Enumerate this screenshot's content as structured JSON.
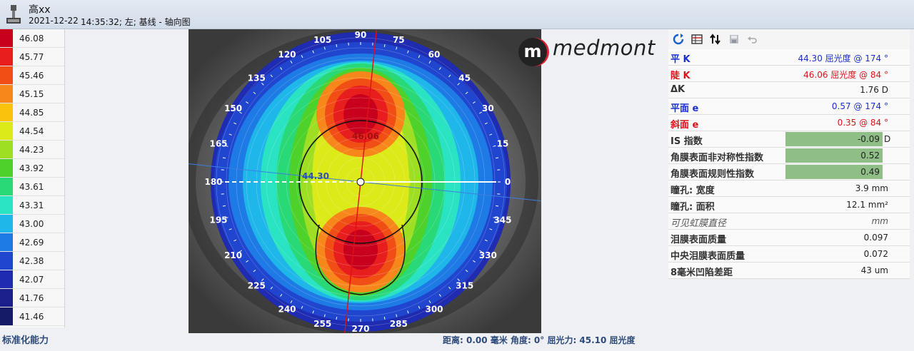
{
  "header": {
    "patient_name": "高xx",
    "exam_date": "2021-12-22",
    "exam_info": "14:35:32; 左; 基线 - 轴向图"
  },
  "scale": {
    "values": [
      "46.08",
      "45.77",
      "45.46",
      "45.15",
      "44.85",
      "44.54",
      "44.23",
      "43.92",
      "43.61",
      "43.31",
      "43.00",
      "42.69",
      "42.38",
      "42.07",
      "41.76",
      "41.46"
    ],
    "colors": [
      "#c8001e",
      "#e81e1e",
      "#f04e14",
      "#f7861b",
      "#fbc20d",
      "#dcea1a",
      "#9ede23",
      "#4ed12a",
      "#29d877",
      "#29e3c2",
      "#1fb6ea",
      "#1e7ae4",
      "#2046d0",
      "#1f2bb0",
      "#1a1f8c",
      "#141a66"
    ],
    "footer": "标准化能力"
  },
  "map": {
    "axis_labels": [
      "90",
      "75",
      "60",
      "45",
      "30",
      "15",
      "0",
      "345",
      "330",
      "315",
      "300",
      "285",
      "270",
      "255",
      "240",
      "225",
      "210",
      "195",
      "180",
      "165",
      "150",
      "135",
      "120",
      "105"
    ],
    "sim_k_flat": "44.30",
    "sim_k_steep": "46.06",
    "brand": "medmont",
    "brand_mark": "m"
  },
  "status": {
    "text": "距离: 0.00 毫米  角度: 0°  屈光力: 45.10 屈光度"
  },
  "panel": {
    "toolbar": [
      "refresh-icon",
      "grid-settings-icon",
      "sort-icon",
      "save-icon",
      "undo-icon"
    ],
    "rows": [
      {
        "label": "平 K",
        "value": "44.30 屈光度 @  174 °",
        "style": "blue"
      },
      {
        "label": "陡 K",
        "value": "46.06 屈光度 @   84 °",
        "style": "red"
      },
      {
        "label": "ΔK",
        "value": "1.76 D",
        "style": "normal"
      },
      {
        "label": "平面 e",
        "value": "0.57 @ 174 °",
        "style": "blue"
      },
      {
        "label": "斜面 e",
        "value": "0.35 @  84 °",
        "style": "red"
      },
      {
        "label": "IS 指数",
        "value": "-0.09",
        "unit": "D",
        "bar": true
      },
      {
        "label": "角膜表面非对称性指数",
        "value": "0.52",
        "bar": true
      },
      {
        "label": "角膜表面规则性指数",
        "value": "0.49",
        "bar": true
      },
      {
        "label": "瞳孔: 宽度",
        "value": "3.9 mm"
      },
      {
        "label": "瞳孔: 面积",
        "value": "12.1 mm²"
      },
      {
        "label": "可见虹膜直径",
        "value": "mm",
        "italic": true
      },
      {
        "label": "泪膜表面质量",
        "value": "0.097"
      },
      {
        "label": "中央泪膜表面质量",
        "value": "0.072"
      },
      {
        "label": "8毫米凹陷差距",
        "value": "43 um"
      }
    ]
  },
  "colors": {
    "blue_text": "#1a2fd0",
    "red_text": "#d8141a",
    "bar_green": "#8fbf87",
    "heading_blue": "#2d4a7a"
  }
}
